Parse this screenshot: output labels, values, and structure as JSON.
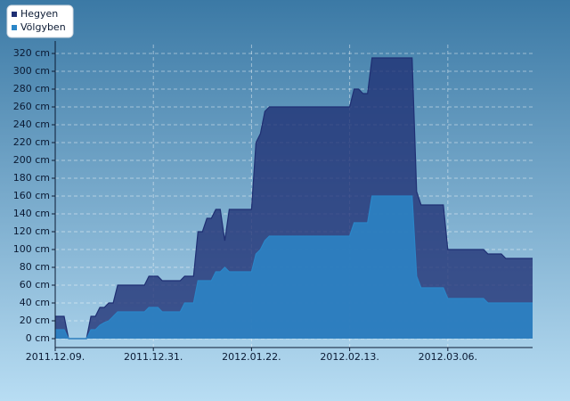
{
  "chart_data": {
    "type": "area",
    "x": [
      "2011.12.09.",
      "2011.12.11.",
      "2011.12.12.",
      "2011.12.16.",
      "2011.12.17.",
      "2011.12.18.",
      "2011.12.19.",
      "2011.12.20.",
      "2011.12.21.",
      "2011.12.22.",
      "2011.12.23.",
      "2011.12.29.",
      "2011.12.30.",
      "2012.01.01.",
      "2012.01.02.",
      "2012.01.06.",
      "2012.01.07.",
      "2012.01.09.",
      "2012.01.10.",
      "2012.01.11.",
      "2012.01.12.",
      "2012.01.13.",
      "2012.01.14.",
      "2012.01.15.",
      "2012.01.16.",
      "2012.01.17.",
      "2012.01.22.",
      "2012.01.23.",
      "2012.01.24.",
      "2012.01.25.",
      "2012.01.26.",
      "2012.02.13.",
      "2012.02.14.",
      "2012.02.15.",
      "2012.02.16.",
      "2012.02.17.",
      "2012.02.18.",
      "2012.02.27.",
      "2012.02.28.",
      "2012.02.29.",
      "2012.03.05.",
      "2012.03.06.",
      "2012.03.14.",
      "2012.03.15.",
      "2012.03.18.",
      "2012.03.19.",
      "2012.03.25."
    ],
    "series": [
      {
        "name": "Hegyen",
        "color": "#1f2f73",
        "values": [
          25,
          25,
          0,
          0,
          25,
          25,
          35,
          35,
          40,
          40,
          60,
          60,
          70,
          70,
          65,
          65,
          70,
          70,
          120,
          120,
          135,
          135,
          145,
          145,
          110,
          145,
          145,
          220,
          230,
          255,
          260,
          260,
          280,
          280,
          275,
          275,
          315,
          315,
          165,
          150,
          150,
          100,
          100,
          95,
          95,
          90,
          90
        ]
      },
      {
        "name": "Völgyben",
        "color": "#2b86c8",
        "values": [
          10,
          10,
          0,
          0,
          10,
          10,
          15,
          18,
          20,
          25,
          30,
          30,
          35,
          35,
          30,
          30,
          40,
          40,
          65,
          65,
          65,
          65,
          75,
          75,
          80,
          75,
          75,
          95,
          100,
          110,
          115,
          115,
          130,
          130,
          130,
          130,
          160,
          160,
          70,
          57,
          57,
          45,
          45,
          40,
          40,
          40,
          40
        ]
      }
    ],
    "xlim": [
      "2011.12.09.",
      "2012.03.25."
    ],
    "xticks": [
      "2011.12.09.",
      "2011.12.31.",
      "2012.01.22.",
      "2012.02.13.",
      "2012.03.06."
    ],
    "ylim": [
      -10,
      330
    ],
    "yticks": [
      {
        "value": 0,
        "label": "0 cm"
      },
      {
        "value": 20,
        "label": "20 cm"
      },
      {
        "value": 40,
        "label": "40 cm"
      },
      {
        "value": 60,
        "label": "60 cm"
      },
      {
        "value": 80,
        "label": "80 cm"
      },
      {
        "value": 100,
        "label": "100 cm"
      },
      {
        "value": 120,
        "label": "120 cm"
      },
      {
        "value": 140,
        "label": "140 cm"
      },
      {
        "value": 160,
        "label": "160 cm"
      },
      {
        "value": 180,
        "label": "180 cm"
      },
      {
        "value": 200,
        "label": "200 cm"
      },
      {
        "value": 220,
        "label": "220 cm"
      },
      {
        "value": 240,
        "label": "240 cm"
      },
      {
        "value": 260,
        "label": "260 cm"
      },
      {
        "value": 280,
        "label": "280 cm"
      },
      {
        "value": 300,
        "label": "300 cm"
      },
      {
        "value": 320,
        "label": "320 cm"
      }
    ],
    "grid": true,
    "legend": "top-left"
  }
}
